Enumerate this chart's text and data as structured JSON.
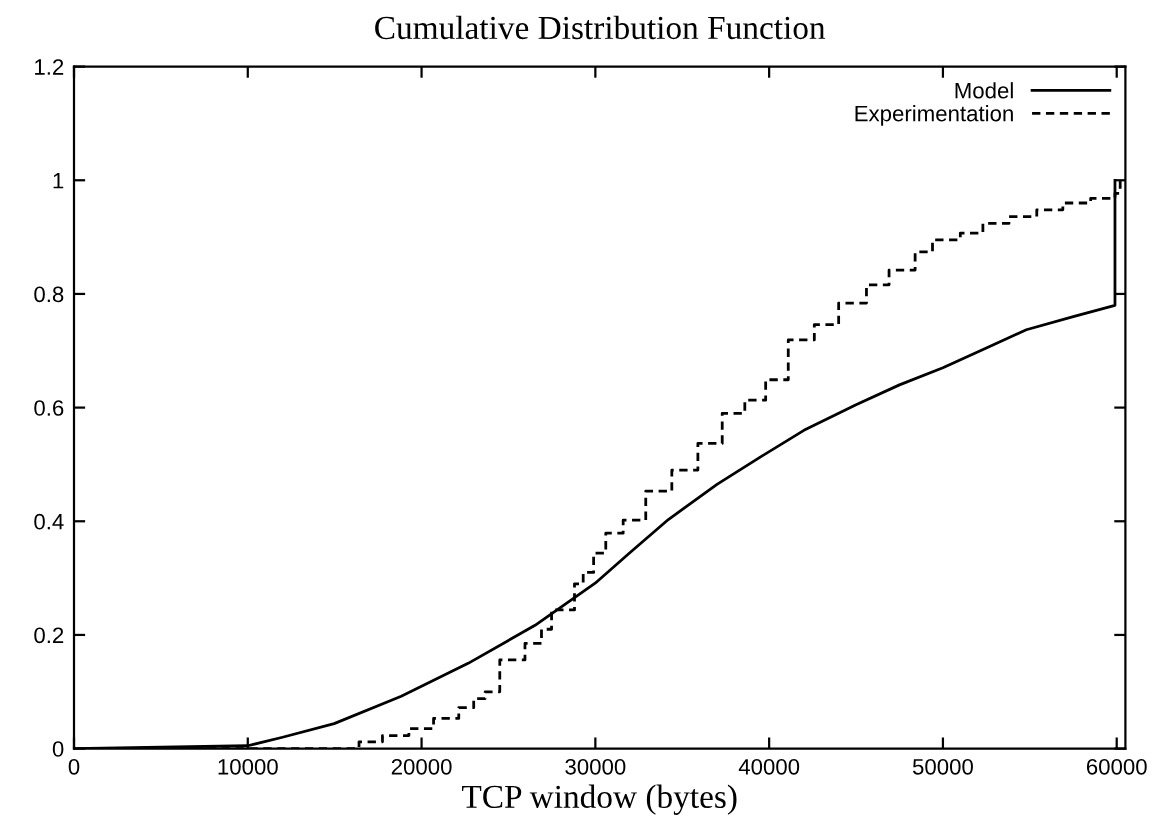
{
  "chart_data": {
    "type": "line",
    "title": "Cumulative Distribution Function",
    "xlabel": "TCP window (bytes)",
    "xlim": [
      0,
      60500
    ],
    "ylim": [
      0,
      1.2
    ],
    "xticks": [
      0,
      10000,
      20000,
      30000,
      40000,
      50000,
      60000
    ],
    "yticks": [
      0,
      0.2,
      0.4,
      0.6,
      0.8,
      1,
      1.2
    ],
    "grid": false,
    "legend": "top right",
    "marker": "none",
    "series": [
      {
        "name": "Model",
        "color": "#000000",
        "line_style": "solid",
        "x": [
          0,
          10000,
          12000,
          14970,
          18830,
          22680,
          26530,
          29990,
          32000,
          34200,
          37000,
          39600,
          42000,
          45000,
          47500,
          50000,
          52500,
          54800,
          57500,
          59900,
          59900
        ],
        "values": [
          0,
          0.005,
          0.02,
          0.044,
          0.092,
          0.15,
          0.217,
          0.291,
          0.345,
          0.403,
          0.465,
          0.515,
          0.56,
          0.605,
          0.64,
          0.67,
          0.705,
          0.737,
          0.76,
          0.78,
          1
        ]
      },
      {
        "name": "Experimentation",
        "color": "#000000",
        "type": "step",
        "line_style": "dashed",
        "x": [
          2900,
          16400,
          17750,
          19270,
          20690,
          22140,
          23000,
          23660,
          24500,
          25950,
          26900,
          27480,
          28800,
          29300,
          29900,
          30600,
          31600,
          32900,
          34400,
          35900,
          37300,
          38600,
          39800,
          41100,
          42600,
          44000,
          45600,
          46900,
          48400,
          49400,
          51000,
          52300,
          53800,
          55400,
          56900,
          58500,
          59900,
          60200,
          60200
        ],
        "values": [
          0,
          0.012,
          0.023,
          0.035,
          0.053,
          0.072,
          0.088,
          0.1,
          0.156,
          0.185,
          0.21,
          0.244,
          0.29,
          0.31,
          0.344,
          0.379,
          0.402,
          0.453,
          0.49,
          0.537,
          0.59,
          0.613,
          0.649,
          0.719,
          0.746,
          0.784,
          0.816,
          0.842,
          0.874,
          0.895,
          0.907,
          0.924,
          0.936,
          0.948,
          0.96,
          0.968,
          0.977,
          0.977,
          1
        ]
      }
    ]
  }
}
